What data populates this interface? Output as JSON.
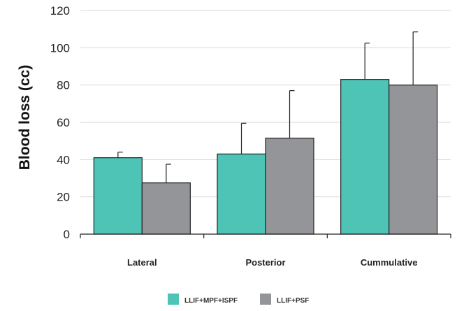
{
  "chart_data": {
    "type": "bar",
    "title": "",
    "xlabel": "",
    "ylabel": "Blood loss (cc)",
    "ylim": [
      0,
      120
    ],
    "yticks": [
      0,
      20,
      40,
      60,
      80,
      100,
      120
    ],
    "grid": true,
    "legend_position": "bottom",
    "categories": [
      "Lateral",
      "Posterior",
      "Cummulative"
    ],
    "series": [
      {
        "name": "LLIF+MPF+ISPF",
        "color": "#4dc4b6",
        "values": [
          41,
          43,
          83
        ],
        "error_upper": [
          44,
          59.5,
          102.5
        ]
      },
      {
        "name": "LLIF+PSF",
        "color": "#939598",
        "values": [
          27.5,
          51.5,
          80
        ],
        "error_upper": [
          37.5,
          77,
          108.5
        ]
      }
    ]
  }
}
